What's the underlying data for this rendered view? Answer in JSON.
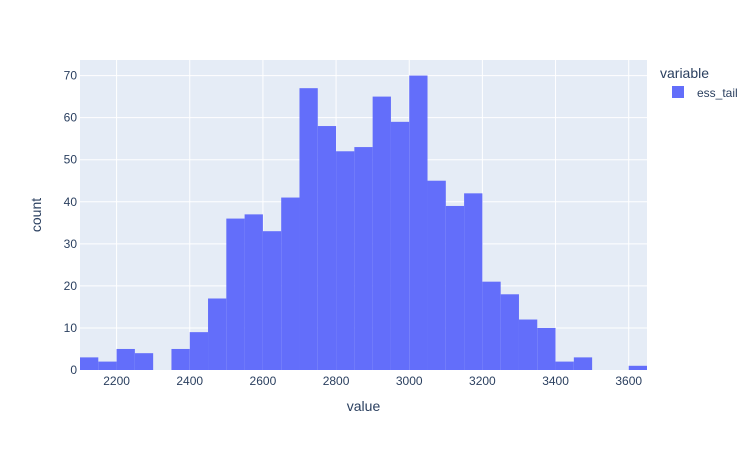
{
  "chart_data": {
    "type": "bar",
    "subtype": "histogram",
    "xlabel": "value",
    "ylabel": "count",
    "xlim": [
      2100,
      3650
    ],
    "ylim": [
      0,
      73.7
    ],
    "bin_width": 50,
    "x_ticks": [
      2200,
      2400,
      2600,
      2800,
      3000,
      3200,
      3400,
      3600
    ],
    "y_ticks": [
      0,
      10,
      20,
      30,
      40,
      50,
      60,
      70
    ],
    "grid": true,
    "legend_title": "variable",
    "legend_placement": "top-right",
    "series": [
      {
        "name": "ess_tail",
        "color": "#636efa",
        "bin_starts": [
          2100,
          2150,
          2200,
          2250,
          2300,
          2350,
          2400,
          2450,
          2500,
          2550,
          2600,
          2650,
          2700,
          2750,
          2800,
          2850,
          2900,
          2950,
          3000,
          3050,
          3100,
          3150,
          3200,
          3250,
          3300,
          3350,
          3400,
          3450,
          3500,
          3550,
          3600
        ],
        "values": [
          3,
          2,
          5,
          4,
          0,
          5,
          9,
          17,
          36,
          37,
          33,
          41,
          67,
          58,
          52,
          53,
          65,
          59,
          70,
          45,
          39,
          42,
          21,
          18,
          12,
          10,
          2,
          3,
          0,
          0,
          1
        ]
      }
    ]
  }
}
